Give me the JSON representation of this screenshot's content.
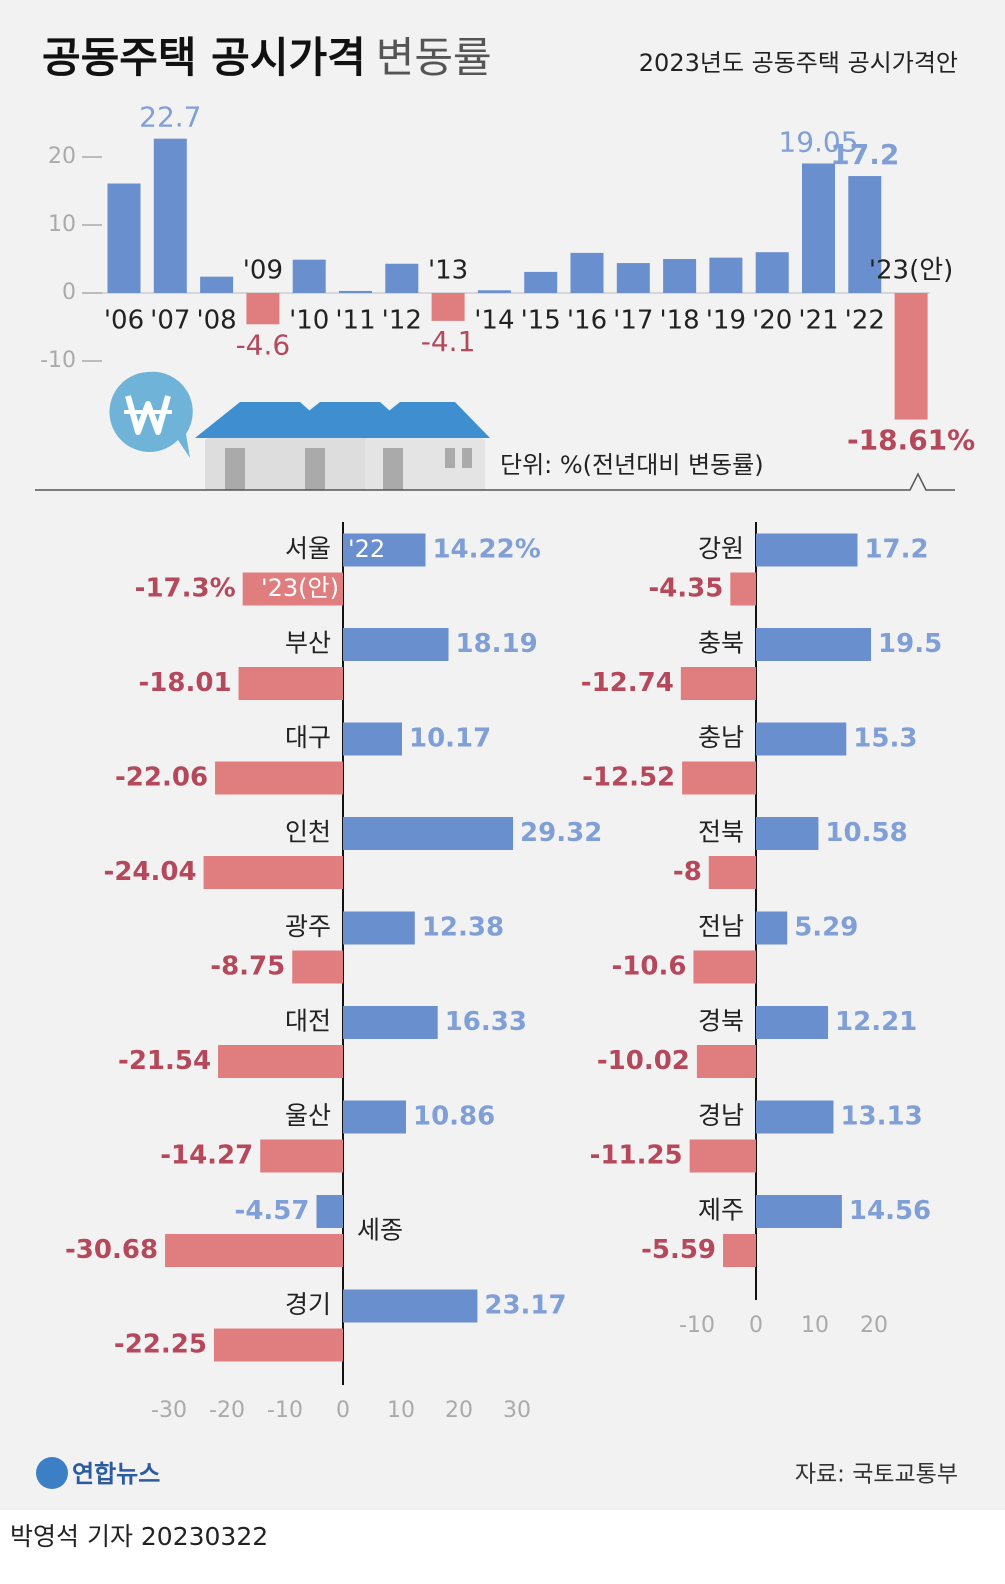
{
  "header": {
    "title": "공동주택 공시가격",
    "title_light": "변동률",
    "subtitle": "2023년도 공동주택 공시가격안",
    "unit": "단위: %(전년대비 변동률)"
  },
  "footer": {
    "logo": "연합뉴스",
    "source": "자료: 국토교통부",
    "byline": "박영석 기자 20230322"
  },
  "chart_data": [
    {
      "type": "bar",
      "categories": [
        "'06",
        "'07",
        "'08",
        "'09",
        "'10",
        "'11",
        "'12",
        "'13",
        "'14",
        "'15",
        "'16",
        "'17",
        "'18",
        "'19",
        "'20",
        "'21",
        "'22",
        "'23(안)"
      ],
      "values": [
        16.1,
        22.7,
        2.4,
        -4.6,
        4.9,
        0.3,
        4.3,
        -4.1,
        0.4,
        3.1,
        5.9,
        4.4,
        5.0,
        5.2,
        6.0,
        19.05,
        17.2,
        -18.61
      ],
      "value_labels": [
        null,
        "22.7",
        null,
        "-4.6",
        null,
        null,
        null,
        "-4.1",
        null,
        null,
        null,
        null,
        null,
        null,
        null,
        "19.05",
        "17.2",
        "-18.61%"
      ],
      "color": "#6a8fce",
      "negative_color": "#e07d7e",
      "ylim": [
        -20,
        25
      ],
      "yticks": [
        -10,
        0,
        10,
        20
      ]
    },
    {
      "type": "hbar",
      "categories": [
        "서울",
        "부산",
        "대구",
        "인천",
        "광주",
        "대전",
        "울산",
        "세종",
        "경기"
      ],
      "series": [
        {
          "name": "'22",
          "color": "#6a8fce",
          "values": [
            14.22,
            18.19,
            10.17,
            29.32,
            12.38,
            16.33,
            10.86,
            -4.57,
            23.17
          ],
          "value_labels": [
            "14.22%",
            "18.19",
            "10.17",
            "29.32",
            "12.38",
            "16.33",
            "10.86",
            "-4.57",
            "23.17"
          ]
        },
        {
          "name": "'23(안)",
          "color": "#e07d7e",
          "values": [
            -17.3,
            -18.01,
            -22.06,
            -24.04,
            -8.75,
            -21.54,
            -14.27,
            -30.68,
            -22.25
          ],
          "value_labels": [
            "-17.3%",
            "-18.01",
            "-22.06",
            "-24.04",
            "-8.75",
            "-21.54",
            "-14.27",
            "-30.68",
            "-22.25"
          ]
        }
      ],
      "xlim": [
        -35,
        35
      ],
      "xticks": [
        -30,
        -20,
        -10,
        0,
        10,
        20,
        30
      ],
      "legend": "in-bars"
    },
    {
      "type": "hbar",
      "categories": [
        "강원",
        "충북",
        "충남",
        "전북",
        "전남",
        "경북",
        "경남",
        "제주"
      ],
      "series": [
        {
          "name": "'22",
          "color": "#6a8fce",
          "values": [
            17.2,
            19.5,
            15.3,
            10.58,
            5.29,
            12.21,
            13.13,
            14.56
          ],
          "value_labels": [
            "17.2",
            "19.5",
            "15.3",
            "10.58",
            "5.29",
            "12.21",
            "13.13",
            "14.56"
          ]
        },
        {
          "name": "'23(안)",
          "color": "#e07d7e",
          "values": [
            -4.35,
            -12.74,
            -12.52,
            -8,
            -10.6,
            -10.02,
            -11.25,
            -5.59
          ],
          "value_labels": [
            "-4.35",
            "-12.74",
            "-12.52",
            "-8",
            "-10.6",
            "-10.02",
            "-11.25",
            "-5.59"
          ]
        }
      ],
      "xlim": [
        -15,
        25
      ],
      "xticks": [
        -10,
        0,
        10,
        20
      ]
    }
  ]
}
